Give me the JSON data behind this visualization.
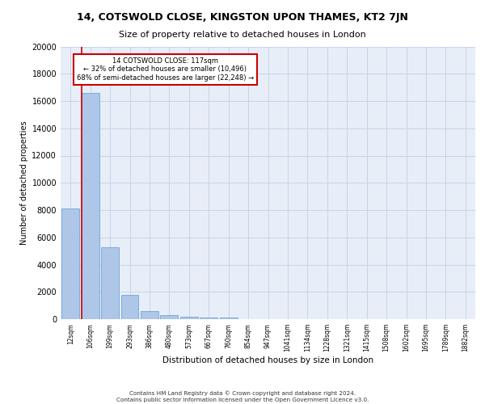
{
  "title_line1": "14, COTSWOLD CLOSE, KINGSTON UPON THAMES, KT2 7JN",
  "title_line2": "Size of property relative to detached houses in London",
  "xlabel": "Distribution of detached houses by size in London",
  "ylabel": "Number of detached properties",
  "bar_labels": [
    "12sqm",
    "106sqm",
    "199sqm",
    "293sqm",
    "386sqm",
    "480sqm",
    "573sqm",
    "667sqm",
    "760sqm",
    "854sqm",
    "947sqm",
    "1041sqm",
    "1134sqm",
    "1228sqm",
    "1321sqm",
    "1415sqm",
    "1508sqm",
    "1602sqm",
    "1695sqm",
    "1789sqm",
    "1882sqm"
  ],
  "bar_heights": [
    8100,
    16600,
    5300,
    1750,
    600,
    300,
    175,
    125,
    100,
    0,
    0,
    0,
    0,
    0,
    0,
    0,
    0,
    0,
    0,
    0,
    0
  ],
  "bar_color": "#aec6e8",
  "bar_edge_color": "#5b9bd5",
  "annotation_text_line1": "14 COTSWOLD CLOSE: 117sqm",
  "annotation_text_line2": "← 32% of detached houses are smaller (10,496)",
  "annotation_text_line3": "68% of semi-detached houses are larger (22,248) →",
  "annotation_box_color": "#ffffff",
  "annotation_box_edge_color": "#cc0000",
  "vline_color": "#cc0000",
  "ylim": [
    0,
    20000
  ],
  "yticks": [
    0,
    2000,
    4000,
    6000,
    8000,
    10000,
    12000,
    14000,
    16000,
    18000,
    20000
  ],
  "grid_color": "#c8d4e8",
  "background_color": "#e8eef8",
  "footer_line1": "Contains HM Land Registry data © Crown copyright and database right 2024.",
  "footer_line2": "Contains public sector information licensed under the Open Government Licence v3.0."
}
